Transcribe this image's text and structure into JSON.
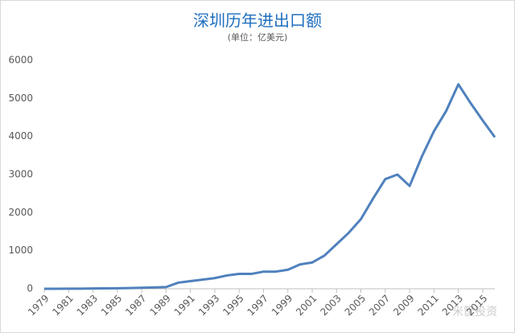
{
  "chart_data": {
    "type": "line",
    "title": "深圳历年进出口额",
    "subtitle": "(单位：亿美元)",
    "x": [
      1979,
      1980,
      1981,
      1982,
      1983,
      1984,
      1985,
      1986,
      1987,
      1988,
      1989,
      1990,
      1991,
      1992,
      1993,
      1994,
      1995,
      1996,
      1997,
      1998,
      1999,
      2000,
      2001,
      2002,
      2003,
      2004,
      2005,
      2006,
      2007,
      2008,
      2009,
      2010,
      2011,
      2012,
      2013,
      2014,
      2015,
      2016
    ],
    "series": [
      {
        "name": "进出口额",
        "color": "#4f81bd",
        "values": [
          1,
          1,
          2,
          3,
          9,
          11,
          13,
          19,
          27,
          35,
          45,
          160,
          200,
          240,
          280,
          350,
          390,
          390,
          450,
          450,
          500,
          640,
          690,
          870,
          1170,
          1470,
          1830,
          2370,
          2880,
          3000,
          2700,
          3470,
          4140,
          4670,
          5370,
          4880,
          4420,
          3980
        ]
      }
    ],
    "xlim": [
      1979,
      2016
    ],
    "xticks": [
      1979,
      1981,
      1983,
      1985,
      1987,
      1989,
      1991,
      1993,
      1995,
      1997,
      1999,
      2001,
      2003,
      2005,
      2007,
      2009,
      2011,
      2013,
      2015
    ],
    "ylim": [
      0,
      6000
    ],
    "yticks": [
      0,
      1000,
      2000,
      3000,
      4000,
      5000,
      6000
    ],
    "grid": false,
    "watermark": "米筐投资"
  }
}
